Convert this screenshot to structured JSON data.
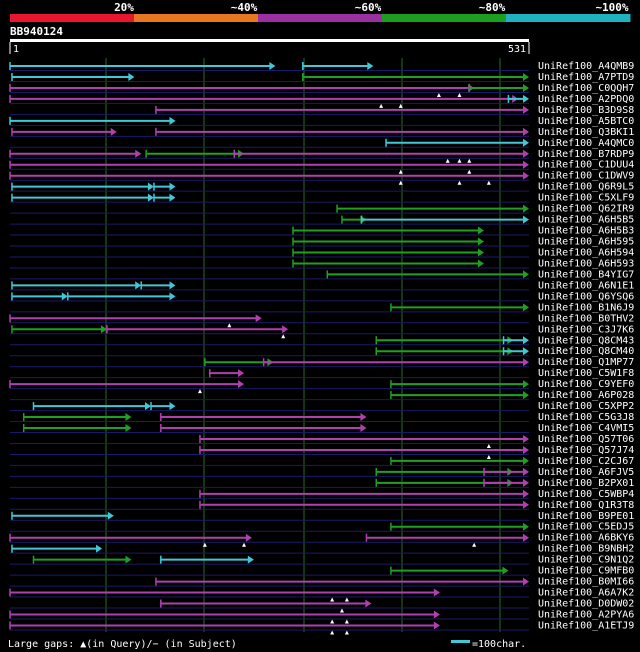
{
  "colors": {
    "bin1": "#e8162e",
    "bin2": "#e87820",
    "bin3": "#9b30a0",
    "bin4": "#1e9e1e",
    "bin5": "#20b0c0",
    "magenta": "#b040b0",
    "green": "#20a020",
    "cyan": "#40c8d8",
    "grid": "#2a6a2a",
    "rowline": "#1a1a6a"
  },
  "legend": {
    "pct": [
      "20%",
      "~40%",
      "~60%",
      "~80%",
      "~100%"
    ]
  },
  "query": {
    "id": "BB940124",
    "start": "1",
    "end": "531",
    "length": 531
  },
  "footer": {
    "gap_text": "Large gaps: ▲(in Query)/− (in Subject)",
    "scale_text": "=100char."
  },
  "hits": [
    {
      "name": "UniRef100_A4QMB9",
      "segs": [
        [
          "c",
          1,
          272
        ],
        [
          "c",
          300,
          372
        ]
      ],
      "tri": []
    },
    {
      "name": "UniRef100_A7PTD9",
      "segs": [
        [
          "c",
          3,
          128
        ],
        [
          "g",
          300,
          531
        ]
      ],
      "tri": []
    },
    {
      "name": "UniRef100_C0QQH7",
      "segs": [
        [
          "m",
          1,
          475
        ],
        [
          "g",
          470,
          531
        ]
      ],
      "tri": [
        439,
        460
      ]
    },
    {
      "name": "UniRef100_A2PDQ0",
      "segs": [
        [
          "m",
          1,
          520
        ],
        [
          "c",
          510,
          531
        ]
      ],
      "tri": [
        380,
        400
      ]
    },
    {
      "name": "UniRef100_B3D9S8",
      "segs": [
        [
          "m",
          150,
          531
        ]
      ],
      "tri": []
    },
    {
      "name": "UniRef100_A5BTC0",
      "segs": [
        [
          "c",
          1,
          170
        ]
      ],
      "tri": []
    },
    {
      "name": "UniRef100_Q3BKI1",
      "segs": [
        [
          "m",
          3,
          110
        ],
        [
          "m",
          150,
          531
        ]
      ],
      "tri": []
    },
    {
      "name": "UniRef100_A4QMC0",
      "segs": [
        [
          "c",
          385,
          531
        ]
      ],
      "tri": []
    },
    {
      "name": "UniRef100_B7RDP9",
      "segs": [
        [
          "m",
          1,
          135
        ],
        [
          "g",
          140,
          240
        ],
        [
          "m",
          230,
          531
        ]
      ],
      "tri": [
        448,
        460,
        470
      ]
    },
    {
      "name": "UniRef100_C1DUU4",
      "segs": [
        [
          "m",
          1,
          531
        ]
      ],
      "tri": [
        400,
        470
      ]
    },
    {
      "name": "UniRef100_C1DWV9",
      "segs": [
        [
          "m",
          1,
          531
        ]
      ],
      "tri": [
        400,
        460,
        490
      ]
    },
    {
      "name": "UniRef100_Q6R9L5",
      "segs": [
        [
          "c",
          3,
          148
        ],
        [
          "c",
          148,
          170
        ]
      ],
      "tri": []
    },
    {
      "name": "UniRef100_C5XLF9",
      "segs": [
        [
          "c",
          3,
          148
        ],
        [
          "c",
          148,
          170
        ]
      ],
      "tri": []
    },
    {
      "name": "UniRef100_Q62IR9",
      "segs": [
        [
          "g",
          335,
          531
        ]
      ],
      "tri": []
    },
    {
      "name": "UniRef100_A6H5B5",
      "segs": [
        [
          "g",
          340,
          365
        ],
        [
          "c",
          360,
          531
        ]
      ],
      "tri": []
    },
    {
      "name": "UniRef100_A6H5B3",
      "segs": [
        [
          "g",
          290,
          485
        ]
      ],
      "tri": []
    },
    {
      "name": "UniRef100_A6H595",
      "segs": [
        [
          "g",
          290,
          485
        ]
      ],
      "tri": []
    },
    {
      "name": "UniRef100_A6H594",
      "segs": [
        [
          "g",
          290,
          485
        ]
      ],
      "tri": []
    },
    {
      "name": "UniRef100_A6H593",
      "segs": [
        [
          "g",
          290,
          485
        ]
      ],
      "tri": []
    },
    {
      "name": "UniRef100_B4YIG7",
      "segs": [
        [
          "g",
          325,
          531
        ]
      ],
      "tri": []
    },
    {
      "name": "UniRef100_A6N1E1",
      "segs": [
        [
          "c",
          3,
          135
        ],
        [
          "c",
          135,
          170
        ]
      ],
      "tri": []
    },
    {
      "name": "UniRef100_Q6YSQ6",
      "segs": [
        [
          "c",
          3,
          60
        ],
        [
          "c",
          60,
          170
        ]
      ],
      "tri": []
    },
    {
      "name": "UniRef100_B1N6J9",
      "segs": [
        [
          "g",
          390,
          531
        ]
      ],
      "tri": []
    },
    {
      "name": "UniRef100_B0THV2",
      "segs": [
        [
          "m",
          1,
          258
        ]
      ],
      "tri": [
        225
      ]
    },
    {
      "name": "UniRef100_C3J7K6",
      "segs": [
        [
          "g",
          3,
          100
        ],
        [
          "m",
          100,
          285
        ]
      ],
      "tri": [
        280
      ]
    },
    {
      "name": "UniRef100_Q8CM43",
      "segs": [
        [
          "g",
          375,
          515
        ],
        [
          "c",
          505,
          531
        ]
      ],
      "tri": []
    },
    {
      "name": "UniRef100_Q8CM40",
      "segs": [
        [
          "g",
          375,
          515
        ],
        [
          "c",
          505,
          531
        ]
      ],
      "tri": []
    },
    {
      "name": "UniRef100_Q1MP77",
      "segs": [
        [
          "g",
          200,
          270
        ],
        [
          "m",
          260,
          531
        ]
      ],
      "tri": []
    },
    {
      "name": "UniRef100_C5W1F8",
      "segs": [
        [
          "m",
          205,
          240
        ]
      ],
      "tri": []
    },
    {
      "name": "UniRef100_C9YEF0",
      "segs": [
        [
          "m",
          1,
          240
        ],
        [
          "g",
          390,
          531
        ]
      ],
      "tri": [
        195
      ]
    },
    {
      "name": "UniRef100_A6P028",
      "segs": [
        [
          "g",
          390,
          531
        ]
      ],
      "tri": []
    },
    {
      "name": "UniRef100_C5XPP2",
      "segs": [
        [
          "c",
          25,
          145
        ],
        [
          "c",
          145,
          170
        ]
      ],
      "tri": []
    },
    {
      "name": "UniRef100_C5G3J8",
      "segs": [
        [
          "g",
          15,
          125
        ],
        [
          "m",
          155,
          365
        ]
      ],
      "tri": []
    },
    {
      "name": "UniRef100_C4VMI5",
      "segs": [
        [
          "g",
          15,
          125
        ],
        [
          "m",
          155,
          365
        ]
      ],
      "tri": []
    },
    {
      "name": "UniRef100_Q57T06",
      "segs": [
        [
          "m",
          195,
          531
        ]
      ],
      "tri": [
        490
      ]
    },
    {
      "name": "UniRef100_Q57J74",
      "segs": [
        [
          "m",
          195,
          531
        ]
      ],
      "tri": [
        490
      ]
    },
    {
      "name": "UniRef100_C2CJ67",
      "segs": [
        [
          "g",
          390,
          531
        ]
      ],
      "tri": []
    },
    {
      "name": "UniRef100_A6FJV5",
      "segs": [
        [
          "g",
          375,
          515
        ],
        [
          "m",
          485,
          531
        ]
      ],
      "tri": []
    },
    {
      "name": "UniRef100_B2PX01",
      "segs": [
        [
          "g",
          375,
          515
        ],
        [
          "m",
          485,
          531
        ]
      ],
      "tri": []
    },
    {
      "name": "UniRef100_C5WBP4",
      "segs": [
        [
          "m",
          195,
          531
        ]
      ],
      "tri": []
    },
    {
      "name": "UniRef100_Q1R3T8",
      "segs": [
        [
          "m",
          195,
          531
        ]
      ],
      "tri": []
    },
    {
      "name": "UniRef100_B9PE01",
      "segs": [
        [
          "c",
          3,
          107
        ]
      ],
      "tri": []
    },
    {
      "name": "UniRef100_C5EDJ5",
      "segs": [
        [
          "g",
          390,
          531
        ]
      ],
      "tri": []
    },
    {
      "name": "UniRef100_A6BKY6",
      "segs": [
        [
          "m",
          1,
          248
        ],
        [
          "m",
          365,
          531
        ]
      ],
      "tri": [
        200,
        240,
        475
      ]
    },
    {
      "name": "UniRef100_B9NBH2",
      "segs": [
        [
          "c",
          3,
          95
        ]
      ],
      "tri": []
    },
    {
      "name": "UniRef100_C9N1Q2",
      "segs": [
        [
          "g",
          25,
          125
        ],
        [
          "c",
          155,
          250
        ]
      ],
      "tri": []
    },
    {
      "name": "UniRef100_C9MFB0",
      "segs": [
        [
          "g",
          390,
          510
        ]
      ],
      "tri": []
    },
    {
      "name": "UniRef100_B0MI66",
      "segs": [
        [
          "m",
          150,
          531
        ]
      ],
      "tri": []
    },
    {
      "name": "UniRef100_A6A7K2",
      "segs": [
        [
          "m",
          1,
          440
        ]
      ],
      "tri": [
        330,
        345
      ]
    },
    {
      "name": "UniRef100_D0DW02",
      "segs": [
        [
          "m",
          155,
          370
        ]
      ],
      "tri": [
        340
      ]
    },
    {
      "name": "UniRef100_A2PYA6",
      "segs": [
        [
          "m",
          1,
          440
        ]
      ],
      "tri": [
        330,
        345
      ]
    },
    {
      "name": "UniRef100_A1ETJ9",
      "segs": [
        [
          "m",
          1,
          440
        ]
      ],
      "tri": [
        330,
        345
      ]
    }
  ]
}
